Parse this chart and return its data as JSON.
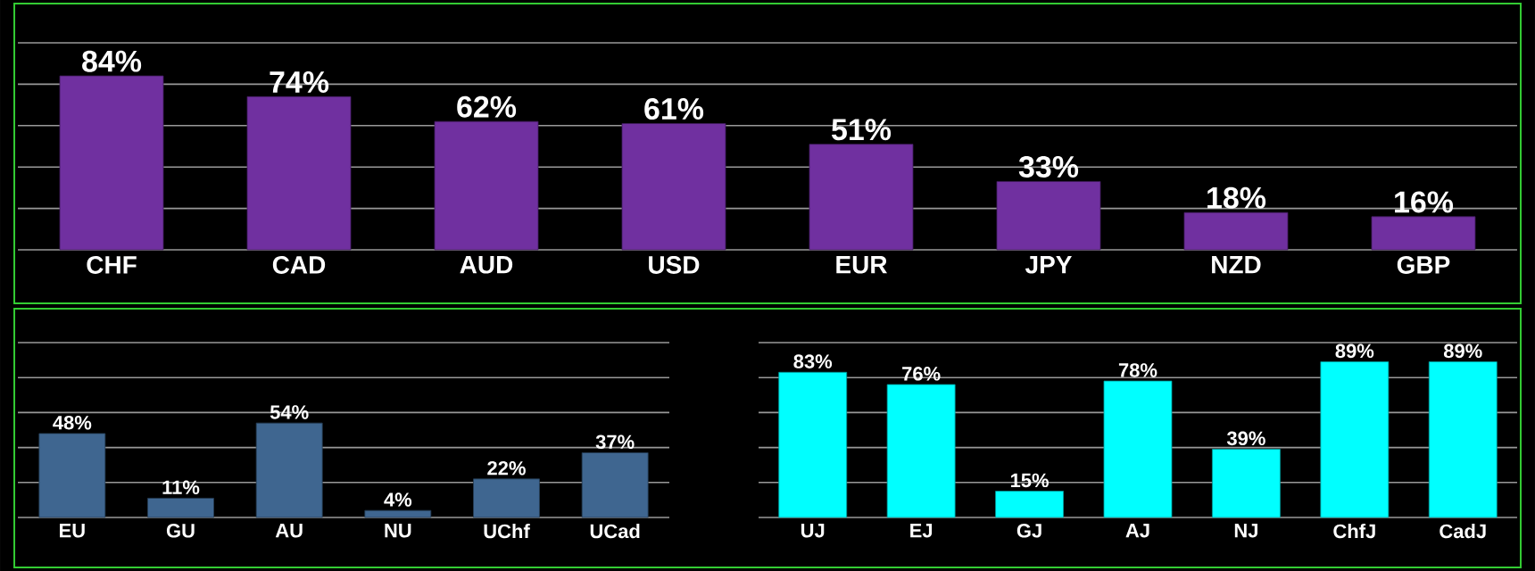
{
  "chart_data": [
    {
      "type": "bar",
      "categories": [
        "CHF",
        "CAD",
        "AUD",
        "USD",
        "EUR",
        "JPY",
        "NZD",
        "GBP"
      ],
      "values": [
        84,
        74,
        62,
        61,
        51,
        33,
        18,
        16
      ],
      "value_labels": [
        "84%",
        "74%",
        "62%",
        "61%",
        "51%",
        "33%",
        "18%",
        "16%"
      ],
      "color": "#7030a0",
      "ylim": [
        0,
        100
      ],
      "yticks": [
        {
          "value": 0,
          "label": null
        },
        {
          "value": 20,
          "label": null
        },
        {
          "value": 40,
          "label": null
        },
        {
          "value": 60,
          "label": null
        },
        {
          "value": 80,
          "label": null
        },
        {
          "value": 100,
          "label": null
        }
      ],
      "grid": "y",
      "tick_labels": "x"
    },
    {
      "type": "bar",
      "categories": [
        "EU",
        "GU",
        "AU",
        "NU",
        "UChf",
        "UCad"
      ],
      "values": [
        48,
        11,
        54,
        4,
        22,
        37
      ],
      "value_labels": [
        "48%",
        "11%",
        "54%",
        "4%",
        "22%",
        "37%"
      ],
      "color": "#3f6690",
      "ylim": [
        0,
        100
      ],
      "yticks": [
        {
          "value": 0,
          "label": null
        },
        {
          "value": 20,
          "label": null
        },
        {
          "value": 40,
          "label": null
        },
        {
          "value": 60,
          "label": null
        },
        {
          "value": 80,
          "label": null
        },
        {
          "value": 100,
          "label": null
        }
      ],
      "grid": "y",
      "tick_labels": "x"
    },
    {
      "type": "bar",
      "categories": [
        "UJ",
        "EJ",
        "GJ",
        "AJ",
        "NJ",
        "ChfJ",
        "CadJ"
      ],
      "values": [
        83,
        76,
        15,
        78,
        39,
        89,
        89
      ],
      "value_labels": [
        "83%",
        "76%",
        "15%",
        "78%",
        "39%",
        "89%",
        "89%"
      ],
      "color": "#00ffff",
      "ylim": [
        0,
        100
      ],
      "yticks": [
        {
          "value": 0,
          "label": null
        },
        {
          "value": 20,
          "label": null
        },
        {
          "value": 40,
          "label": null
        },
        {
          "value": 60,
          "label": null
        },
        {
          "value": 80,
          "label": null
        },
        {
          "value": 100,
          "label": null
        }
      ],
      "grid": "y",
      "tick_labels": "x"
    }
  ]
}
